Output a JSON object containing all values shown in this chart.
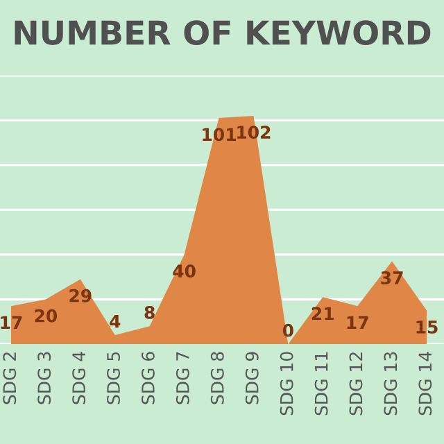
{
  "chart_data": {
    "type": "area",
    "title": "NUMBER OF KEYWORD",
    "categories": [
      "SDG 2",
      "SDG 3",
      "SDG 4",
      "SDG 5",
      "SDG 6",
      "SDG 7",
      "SDG 8",
      "SDG 9",
      "SDG 10",
      "SDG 11",
      "SDG 12",
      "SDG 13",
      "SDG 14"
    ],
    "values": [
      17,
      20,
      29,
      4,
      8,
      40,
      101,
      102,
      0,
      21,
      17,
      37,
      15
    ],
    "color": "#e08748",
    "data_labels": true,
    "grid": "y",
    "tick_labels": "x",
    "ylim": [
      0,
      120
    ],
    "yticks": [
      {
        "value": 0,
        "label": null
      },
      {
        "value": 20,
        "label": null
      },
      {
        "value": 40,
        "label": null
      },
      {
        "value": 60,
        "label": null
      },
      {
        "value": 80,
        "label": null
      },
      {
        "value": 100,
        "label": null
      },
      {
        "value": 120,
        "label": null
      }
    ]
  }
}
